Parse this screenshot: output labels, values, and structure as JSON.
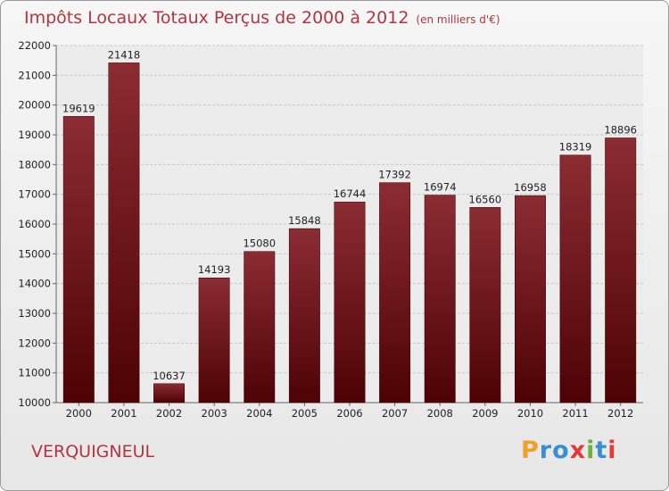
{
  "title": "Impôts Locaux Totaux Perçus de 2000 à 2012",
  "unit": "(en milliers d'€)",
  "place": "VERQUIGNEUL",
  "logo": {
    "letters": [
      "P",
      "r",
      "o",
      "x",
      "i",
      "t",
      "i"
    ],
    "colors": [
      "#f0a02a",
      "#3a8fd0",
      "#3a8fd0",
      "#e03a3a",
      "#6bb33a",
      "#3a8fd0",
      "#e03a3a"
    ]
  },
  "colors": {
    "title": "#b4353f",
    "bar_top": "#8b2c33",
    "bar_bottom": "#4d0204"
  },
  "chart_data": {
    "type": "bar",
    "categories": [
      "2000",
      "2001",
      "2002",
      "2003",
      "2004",
      "2005",
      "2006",
      "2007",
      "2008",
      "2009",
      "2010",
      "2011",
      "2012"
    ],
    "values": [
      19619,
      21418,
      10637,
      14193,
      15080,
      15848,
      16744,
      17392,
      16974,
      16560,
      16958,
      18319,
      18896
    ],
    "ylim": [
      10000,
      22000
    ],
    "yticks": [
      10000,
      11000,
      12000,
      13000,
      14000,
      15000,
      16000,
      17000,
      18000,
      19000,
      20000,
      21000,
      22000
    ],
    "grid": true
  }
}
